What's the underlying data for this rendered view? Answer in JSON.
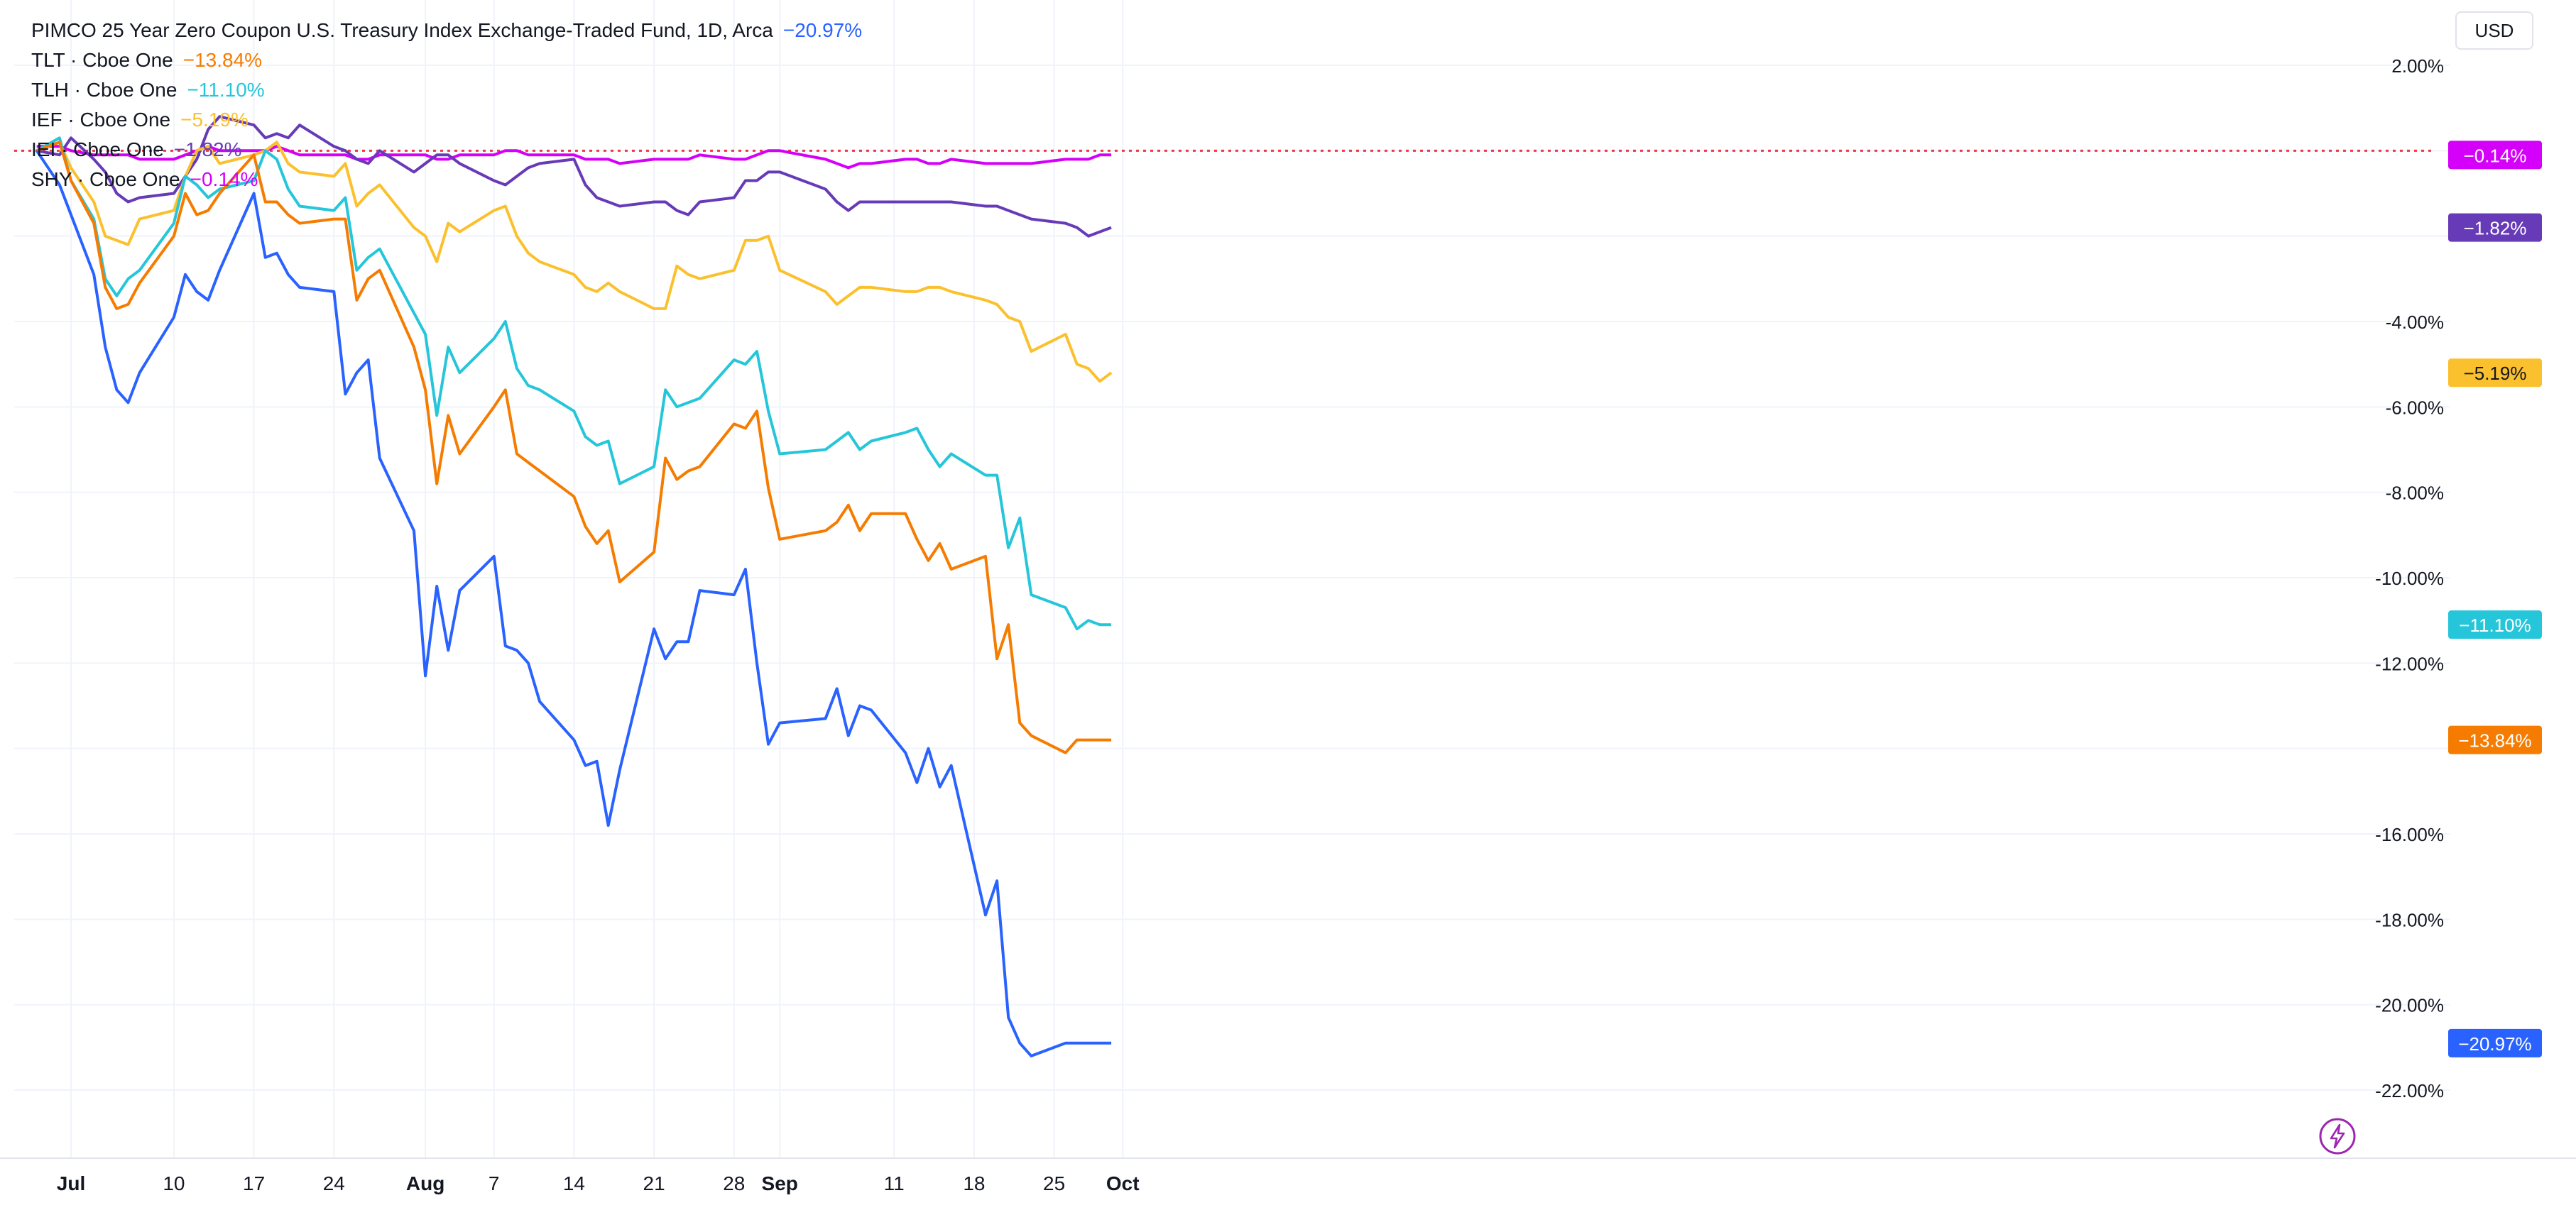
{
  "header": {
    "currency": "USD"
  },
  "legend": [
    {
      "symbol": "PIMCO 25 Year Zero Coupon U.S. Treasury Index Exchange-Traded Fund",
      "detail": "1D",
      "exchange": "Arca",
      "change": "−20.97%",
      "color": "#2962ff"
    },
    {
      "symbol": "TLT",
      "exchange": "Cboe One",
      "change": "−13.84%",
      "color": "#f57c00"
    },
    {
      "symbol": "TLH",
      "exchange": "Cboe One",
      "change": "−11.10%",
      "color": "#26c6da"
    },
    {
      "symbol": "IEF",
      "exchange": "Cboe One",
      "change": "−5.19%",
      "color": "#fbc02d"
    },
    {
      "symbol": "IEI",
      "exchange": "Cboe One",
      "change": "−1.82%",
      "color": "#673ab7"
    },
    {
      "symbol": "SHY",
      "exchange": "Cboe One",
      "change": "−0.14%",
      "color": "#d500f9"
    }
  ],
  "chart_data": {
    "type": "line",
    "title": "PIMCO 25 Year Zero Coupon U.S. Treasury Index Exchange-Traded Fund, 1D, Arca",
    "xlabel": "",
    "ylabel": "",
    "ylim": [
      -23.5,
      2.8
    ],
    "y_ticks": [
      "2.00%",
      "-4.00%",
      "-6.00%",
      "-8.00%",
      "-10.00%",
      "-12.00%",
      "-16.00%",
      "-18.00%",
      "-20.00%",
      "-22.00%"
    ],
    "y_tick_values": [
      2,
      -4,
      -6,
      -8,
      -10,
      -12,
      -16,
      -18,
      -20,
      -22
    ],
    "x_ticks": [
      {
        "label": "Jul",
        "day": 0,
        "bold": true
      },
      {
        "label": "10",
        "day": 9,
        "bold": false
      },
      {
        "label": "17",
        "day": 16,
        "bold": false
      },
      {
        "label": "24",
        "day": 23,
        "bold": false
      },
      {
        "label": "Aug",
        "day": 31,
        "bold": true
      },
      {
        "label": "7",
        "day": 37,
        "bold": false
      },
      {
        "label": "14",
        "day": 44,
        "bold": false
      },
      {
        "label": "21",
        "day": 51,
        "bold": false
      },
      {
        "label": "28",
        "day": 58,
        "bold": false
      },
      {
        "label": "Sep",
        "day": 62,
        "bold": true
      },
      {
        "label": "11",
        "day": 72,
        "bold": false
      },
      {
        "label": "18",
        "day": 79,
        "bold": false
      },
      {
        "label": "25",
        "day": 86,
        "bold": false
      },
      {
        "label": "Oct",
        "day": 92,
        "bold": true
      }
    ],
    "x": [
      -3,
      -1,
      0,
      2,
      3,
      4,
      5,
      6,
      9,
      10,
      11,
      12,
      13,
      16,
      17,
      18,
      19,
      20,
      23,
      24,
      25,
      26,
      27,
      30,
      31,
      32,
      33,
      34,
      37,
      38,
      39,
      40,
      41,
      44,
      45,
      46,
      47,
      48,
      51,
      52,
      53,
      54,
      55,
      58,
      59,
      60,
      61,
      62,
      66,
      67,
      68,
      69,
      70,
      73,
      74,
      75,
      76,
      77,
      80,
      81,
      82,
      83,
      84,
      87,
      88,
      89,
      90,
      91
    ],
    "reference_line": 0,
    "series": [
      {
        "name": "SHY",
        "color": "#d500f9",
        "last_label": "−0.14%",
        "values": [
          0.1,
          0.1,
          0.0,
          -0.1,
          -0.1,
          -0.1,
          -0.1,
          -0.2,
          -0.2,
          -0.1,
          0.0,
          0.1,
          0.0,
          0.0,
          0.0,
          0.1,
          0.0,
          -0.1,
          -0.1,
          -0.1,
          -0.2,
          -0.2,
          -0.1,
          -0.1,
          -0.1,
          -0.2,
          -0.2,
          -0.1,
          -0.1,
          0.0,
          0.0,
          -0.1,
          -0.1,
          -0.1,
          -0.2,
          -0.2,
          -0.2,
          -0.3,
          -0.2,
          -0.2,
          -0.2,
          -0.2,
          -0.1,
          -0.2,
          -0.2,
          -0.1,
          0.0,
          0.0,
          -0.2,
          -0.3,
          -0.4,
          -0.3,
          -0.3,
          -0.2,
          -0.2,
          -0.3,
          -0.3,
          -0.2,
          -0.3,
          -0.3,
          -0.3,
          -0.3,
          -0.3,
          -0.2,
          -0.2,
          -0.2,
          -0.1,
          -0.1
        ]
      },
      {
        "name": "IEI",
        "color": "#673ab7",
        "last_label": "−1.82%",
        "values": [
          0.0,
          -0.1,
          0.3,
          -0.2,
          -0.5,
          -1.0,
          -1.2,
          -1.1,
          -1.0,
          -0.6,
          -0.2,
          0.5,
          0.8,
          0.6,
          0.3,
          0.4,
          0.3,
          0.6,
          0.1,
          0.0,
          -0.2,
          -0.3,
          0.0,
          -0.5,
          -0.3,
          -0.1,
          -0.1,
          -0.3,
          -0.7,
          -0.8,
          -0.6,
          -0.4,
          -0.3,
          -0.2,
          -0.8,
          -1.1,
          -1.2,
          -1.3,
          -1.2,
          -1.2,
          -1.4,
          -1.5,
          -1.2,
          -1.1,
          -0.7,
          -0.7,
          -0.5,
          -0.5,
          -0.9,
          -1.2,
          -1.4,
          -1.2,
          -1.2,
          -1.2,
          -1.2,
          -1.2,
          -1.2,
          -1.2,
          -1.3,
          -1.3,
          -1.4,
          -1.5,
          -1.6,
          -1.7,
          -1.8,
          -2.0,
          -1.9,
          -1.8
        ]
      },
      {
        "name": "IEF",
        "color": "#fbc02d",
        "last_label": "−5.19%",
        "values": [
          0.0,
          0.2,
          -0.4,
          -1.2,
          -2.0,
          -2.1,
          -2.2,
          -1.6,
          -1.4,
          -0.6,
          0.0,
          0.1,
          -0.3,
          -0.1,
          0.0,
          0.2,
          -0.3,
          -0.5,
          -0.6,
          -0.3,
          -1.3,
          -1.0,
          -0.8,
          -1.8,
          -2.0,
          -2.6,
          -1.7,
          -1.9,
          -1.4,
          -1.3,
          -2.0,
          -2.4,
          -2.6,
          -2.9,
          -3.2,
          -3.3,
          -3.1,
          -3.3,
          -3.7,
          -3.7,
          -2.7,
          -2.9,
          -3.0,
          -2.8,
          -2.1,
          -2.1,
          -2.0,
          -2.8,
          -3.3,
          -3.6,
          -3.4,
          -3.2,
          -3.2,
          -3.3,
          -3.3,
          -3.2,
          -3.2,
          -3.3,
          -3.5,
          -3.6,
          -3.9,
          -4.0,
          -4.7,
          -4.3,
          -5.0,
          -5.1,
          -5.4,
          -5.2
        ]
      },
      {
        "name": "TLH",
        "color": "#26c6da",
        "last_label": "−11.10%",
        "values": [
          0.0,
          0.3,
          -0.7,
          -1.6,
          -3.0,
          -3.4,
          -3.0,
          -2.8,
          -1.7,
          -0.6,
          -0.8,
          -1.1,
          -0.9,
          -0.7,
          0.0,
          -0.2,
          -0.9,
          -1.3,
          -1.4,
          -1.1,
          -2.8,
          -2.5,
          -2.3,
          -3.8,
          -4.3,
          -6.2,
          -4.6,
          -5.2,
          -4.4,
          -4.0,
          -5.1,
          -5.5,
          -5.6,
          -6.1,
          -6.7,
          -6.9,
          -6.8,
          -7.8,
          -7.4,
          -5.6,
          -6.0,
          -5.9,
          -5.8,
          -4.9,
          -5.0,
          -4.7,
          -6.1,
          -7.1,
          -7.0,
          -6.8,
          -6.6,
          -7.0,
          -6.8,
          -6.6,
          -6.5,
          -7.0,
          -7.4,
          -7.1,
          -7.6,
          -7.6,
          -9.3,
          -8.6,
          -10.4,
          -10.7,
          -11.2,
          -11.0,
          -11.1,
          -11.1
        ]
      },
      {
        "name": "TLT",
        "color": "#f57c00",
        "last_label": "−13.84%",
        "values": [
          0.0,
          0.2,
          -0.7,
          -1.7,
          -3.2,
          -3.7,
          -3.6,
          -3.1,
          -2.0,
          -1.0,
          -1.5,
          -1.4,
          -1.0,
          -0.1,
          -1.2,
          -1.2,
          -1.5,
          -1.7,
          -1.6,
          -1.6,
          -3.5,
          -3.0,
          -2.8,
          -4.6,
          -5.6,
          -7.8,
          -6.2,
          -7.1,
          -6.0,
          -5.6,
          -7.1,
          -7.3,
          -7.5,
          -8.1,
          -8.8,
          -9.2,
          -8.9,
          -10.1,
          -9.4,
          -7.2,
          -7.7,
          -7.5,
          -7.4,
          -6.4,
          -6.5,
          -6.1,
          -7.9,
          -9.1,
          -8.9,
          -8.7,
          -8.3,
          -8.9,
          -8.5,
          -8.5,
          -9.1,
          -9.6,
          -9.2,
          -9.8,
          -9.5,
          -11.9,
          -11.1,
          -13.4,
          -13.7,
          -14.1,
          -13.8,
          -13.8,
          -13.8,
          -13.8
        ]
      },
      {
        "name": "PIMCO 25 Year Zero Coupon U.S. Treasury Index Exchange-Traded Fund",
        "color": "#2962ff",
        "last_label": "−20.97%",
        "values": [
          0.0,
          -0.8,
          -1.5,
          -2.9,
          -4.6,
          -5.6,
          -5.9,
          -5.2,
          -3.9,
          -2.9,
          -3.3,
          -3.5,
          -2.8,
          -1.0,
          -2.5,
          -2.4,
          -2.9,
          -3.2,
          -3.3,
          -5.7,
          -5.2,
          -4.9,
          -7.2,
          -8.9,
          -12.3,
          -10.2,
          -11.7,
          -10.3,
          -9.5,
          -11.6,
          -11.7,
          -12.0,
          -12.9,
          -13.8,
          -14.4,
          -14.3,
          -15.8,
          -14.5,
          -11.2,
          -11.9,
          -11.5,
          -11.5,
          -10.3,
          -10.4,
          -9.8,
          -12.0,
          -13.9,
          -13.4,
          -13.3,
          -12.6,
          -13.7,
          -13.0,
          -13.1,
          -14.1,
          -14.8,
          -14.0,
          -14.9,
          -14.4,
          -17.9,
          -17.1,
          -20.3,
          -20.9,
          -21.2,
          -20.9,
          -20.9,
          -20.9,
          -20.9,
          -20.9
        ]
      }
    ]
  }
}
